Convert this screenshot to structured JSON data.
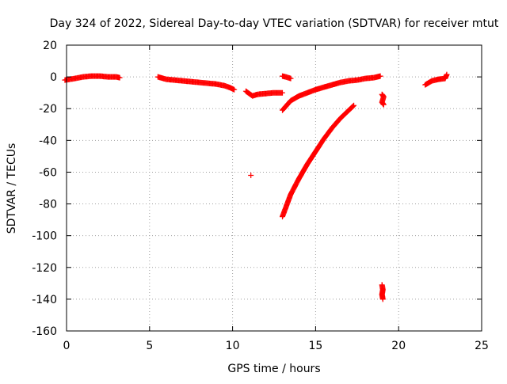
{
  "chart_data": {
    "type": "scatter",
    "title": "Day 324 of 2022, Sidereal Day-to-day VTEC variation (SDTVAR) for receiver mtut",
    "xlabel": "GPS time / hours",
    "ylabel": "SDTVAR / TECUs",
    "xlim": [
      0,
      25
    ],
    "ylim": [
      -160,
      20
    ],
    "xticks": [
      0,
      5,
      10,
      15,
      20,
      25
    ],
    "yticks": [
      20,
      0,
      -20,
      -40,
      -60,
      -80,
      -100,
      -120,
      -140,
      -160
    ],
    "grid": true,
    "marker": "+",
    "color": "#ff0000",
    "segments": [
      {
        "points": [
          [
            -0.1,
            -2
          ],
          [
            0.5,
            -1
          ],
          [
            1.0,
            0
          ],
          [
            1.5,
            0.5
          ],
          [
            2.0,
            0.5
          ],
          [
            2.5,
            0
          ],
          [
            3.0,
            0
          ],
          [
            3.2,
            -0.5
          ]
        ]
      },
      {
        "points": [
          [
            5.5,
            0
          ],
          [
            6.0,
            -1.5
          ],
          [
            6.5,
            -2
          ],
          [
            7.0,
            -2.5
          ],
          [
            7.5,
            -3
          ],
          [
            8.0,
            -3.5
          ],
          [
            8.5,
            -4
          ],
          [
            9.0,
            -4.5
          ],
          [
            9.5,
            -5.5
          ],
          [
            9.9,
            -7
          ],
          [
            10.1,
            -8
          ]
        ]
      },
      {
        "points": [
          [
            10.8,
            -9
          ],
          [
            11.2,
            -12
          ],
          [
            11.5,
            -11
          ],
          [
            12.0,
            -10.5
          ],
          [
            12.5,
            -10
          ],
          [
            13.0,
            -10
          ]
        ]
      },
      {
        "points": [
          [
            11.1,
            -62
          ]
        ]
      },
      {
        "points": [
          [
            13.0,
            0.5
          ],
          [
            13.2,
            0
          ],
          [
            13.5,
            -1
          ]
        ]
      },
      {
        "points": [
          [
            13.0,
            -21
          ],
          [
            13.5,
            -15
          ],
          [
            14.0,
            -12
          ],
          [
            14.5,
            -10
          ],
          [
            15.0,
            -8
          ],
          [
            15.5,
            -6.5
          ],
          [
            16.0,
            -5
          ],
          [
            16.5,
            -3.5
          ],
          [
            17.0,
            -2.5
          ],
          [
            17.5,
            -2
          ],
          [
            18.0,
            -1
          ],
          [
            18.5,
            -0.5
          ],
          [
            18.9,
            0.5
          ]
        ]
      },
      {
        "points": [
          [
            13.0,
            -88
          ],
          [
            13.5,
            -74
          ],
          [
            14.0,
            -64
          ],
          [
            14.5,
            -55
          ],
          [
            15.0,
            -47
          ],
          [
            15.5,
            -39
          ],
          [
            16.0,
            -32
          ],
          [
            16.5,
            -26
          ],
          [
            17.0,
            -21
          ],
          [
            17.3,
            -18
          ]
        ]
      },
      {
        "points": [
          [
            19.0,
            -11
          ],
          [
            19.1,
            -12.5
          ],
          [
            19.0,
            -16
          ],
          [
            19.1,
            -17.5
          ]
        ]
      },
      {
        "points": [
          [
            19.0,
            -131
          ],
          [
            19.05,
            -134
          ],
          [
            19.0,
            -137
          ],
          [
            19.05,
            -140
          ]
        ]
      },
      {
        "points": [
          [
            21.6,
            -5
          ],
          [
            22.0,
            -2.5
          ],
          [
            22.4,
            -1.5
          ],
          [
            22.8,
            -1
          ],
          [
            22.9,
            1.5
          ]
        ]
      }
    ]
  }
}
